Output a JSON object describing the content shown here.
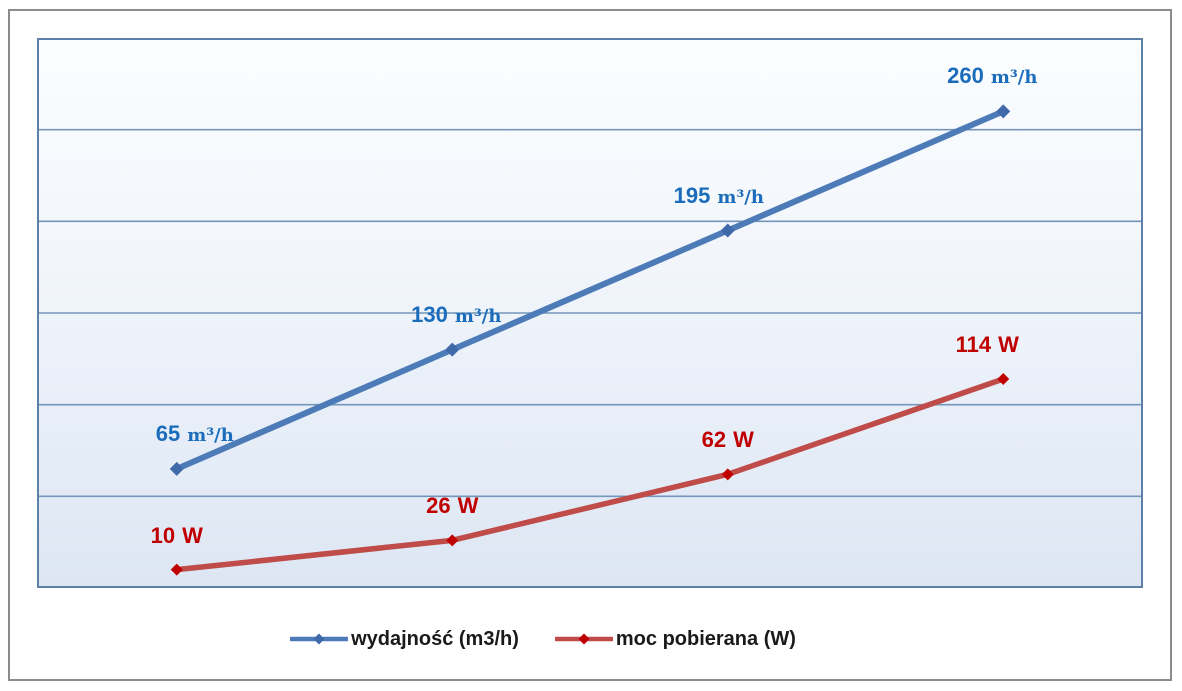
{
  "chart_data": {
    "type": "line",
    "x": [
      1,
      2,
      3,
      4
    ],
    "x_axis_labels_visible": false,
    "y_axis_labels_visible": false,
    "ylim": [
      0,
      300
    ],
    "gridline_step": 50,
    "grid": true,
    "legend_position": "bottom",
    "series": [
      {
        "name": "wydajność (m3/h)",
        "values": [
          65,
          130,
          195,
          260
        ],
        "data_labels": [
          {
            "value": "65",
            "unit": "m³/h"
          },
          {
            "value": "130",
            "unit": "m³/h"
          },
          {
            "value": "195",
            "unit": "m³/h"
          },
          {
            "value": "260",
            "unit": "m³/h"
          }
        ],
        "line_color": "#4d7bb8",
        "marker_color": "#3f69a9",
        "label_color": "#1b6cba"
      },
      {
        "name": "moc pobierana (W)",
        "values": [
          10,
          26,
          62,
          114
        ],
        "data_labels": [
          {
            "value": "10",
            "unit": "W"
          },
          {
            "value": "26",
            "unit": "W"
          },
          {
            "value": "62",
            "unit": "W"
          },
          {
            "value": "114",
            "unit": "W"
          }
        ],
        "line_color": "#bf4c49",
        "marker_color": "#c00000",
        "label_color": "#c00000"
      }
    ]
  },
  "colors": {
    "gridline": "#7396ba",
    "plot_border": "#5d80a7",
    "figure_border": "#8c8c8c",
    "legend_text": "#1a1a1a"
  }
}
